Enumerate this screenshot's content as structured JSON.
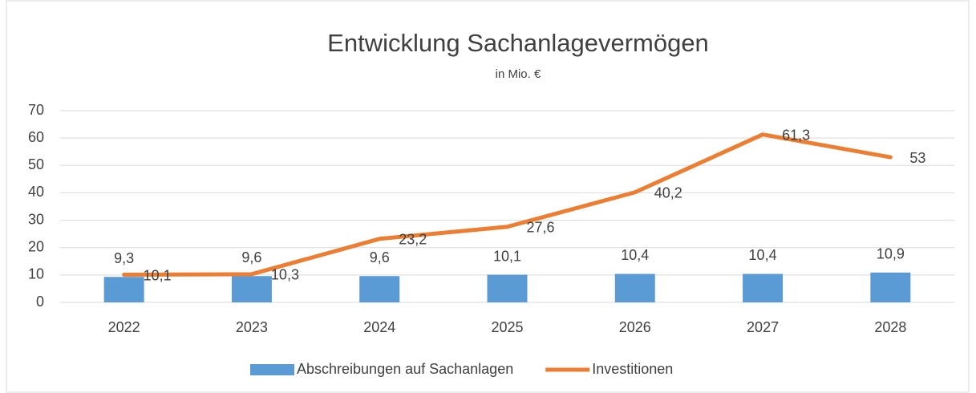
{
  "chart_data": {
    "type": "bar",
    "title": "Entwicklung Sachanlagevermögen",
    "subtitle": "in Mio. €",
    "categories": [
      "2022",
      "2023",
      "2024",
      "2025",
      "2026",
      "2027",
      "2028"
    ],
    "series": [
      {
        "name": "Abschreibungen auf Sachanlagen",
        "type": "bar",
        "color": "#5b9bd5",
        "values": [
          9.3,
          9.6,
          9.6,
          10.1,
          10.4,
          10.4,
          10.9
        ],
        "value_labels": [
          "9,3",
          "9,6",
          "9,6",
          "10,1",
          "10,4",
          "10,4",
          "10,9"
        ]
      },
      {
        "name": "Investitionen",
        "type": "line",
        "color": "#ed7d31",
        "values": [
          10.1,
          10.3,
          23.2,
          27.6,
          40.2,
          61.3,
          53
        ],
        "value_labels": [
          "10,1",
          "10,3",
          "23,2",
          "27,6",
          "40,2",
          "61,3",
          "53"
        ]
      }
    ],
    "ylim": [
      0,
      70
    ],
    "yticks": [
      0,
      10,
      20,
      30,
      40,
      50,
      60,
      70
    ],
    "grid": true,
    "legend": "bottom"
  }
}
